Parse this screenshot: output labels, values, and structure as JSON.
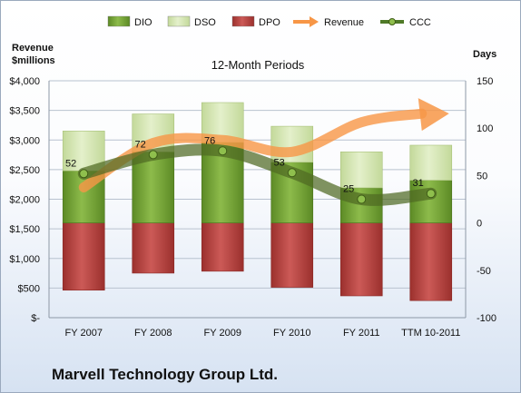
{
  "chart_data": {
    "type": "bar",
    "title": "12-Month Periods",
    "categories": [
      "FY 2007",
      "FY 2008",
      "FY 2009",
      "FY 2010",
      "FY 2011",
      "TTM 10-2011"
    ],
    "left_axis": {
      "label_line1": "Revenue",
      "label_line2": "$millions",
      "ticks": [
        "$-",
        "$500",
        "$1,000",
        "$1,500",
        "$2,000",
        "$2,500",
        "$3,000",
        "$3,500",
        "$4,000"
      ],
      "ylim": [
        0,
        4000
      ]
    },
    "right_axis": {
      "label": "Days",
      "ticks": [
        "-100",
        "-50",
        "0",
        "50",
        "100",
        "150"
      ],
      "ylim": [
        -100,
        150
      ]
    },
    "legend": {
      "position": "top",
      "items": [
        {
          "name": "DIO",
          "color": "#77a33a",
          "kind": "box"
        },
        {
          "name": "DSO",
          "color": "#d6e8b0",
          "kind": "box"
        },
        {
          "name": "DPO",
          "color": "#c0504d",
          "kind": "box"
        },
        {
          "name": "Revenue",
          "color": "#f79646",
          "kind": "arrow"
        },
        {
          "name": "CCC",
          "color": "#4f7a28",
          "kind": "dotline"
        }
      ]
    },
    "series": [
      {
        "name": "DIO",
        "axis": "days",
        "values": [
          55,
          75,
          85,
          64,
          37,
          45
        ]
      },
      {
        "name": "DSO",
        "axis": "days",
        "values": [
          42,
          40,
          42,
          38,
          38,
          37
        ]
      },
      {
        "name": "DPO",
        "axis": "days",
        "values": [
          -71,
          -53,
          -51,
          -68,
          -77,
          -82
        ]
      },
      {
        "name": "Revenue",
        "axis": "revenue",
        "values": [
          2200,
          2950,
          3000,
          2800,
          3300,
          3400
        ]
      },
      {
        "name": "CCC",
        "axis": "days",
        "values": [
          52,
          72,
          76,
          53,
          25,
          31
        ],
        "labels": [
          "52",
          "72",
          "76",
          "53",
          "25",
          "31"
        ]
      }
    ],
    "grid": true
  },
  "footer": {
    "company": "Marvell Technology Group Ltd."
  }
}
